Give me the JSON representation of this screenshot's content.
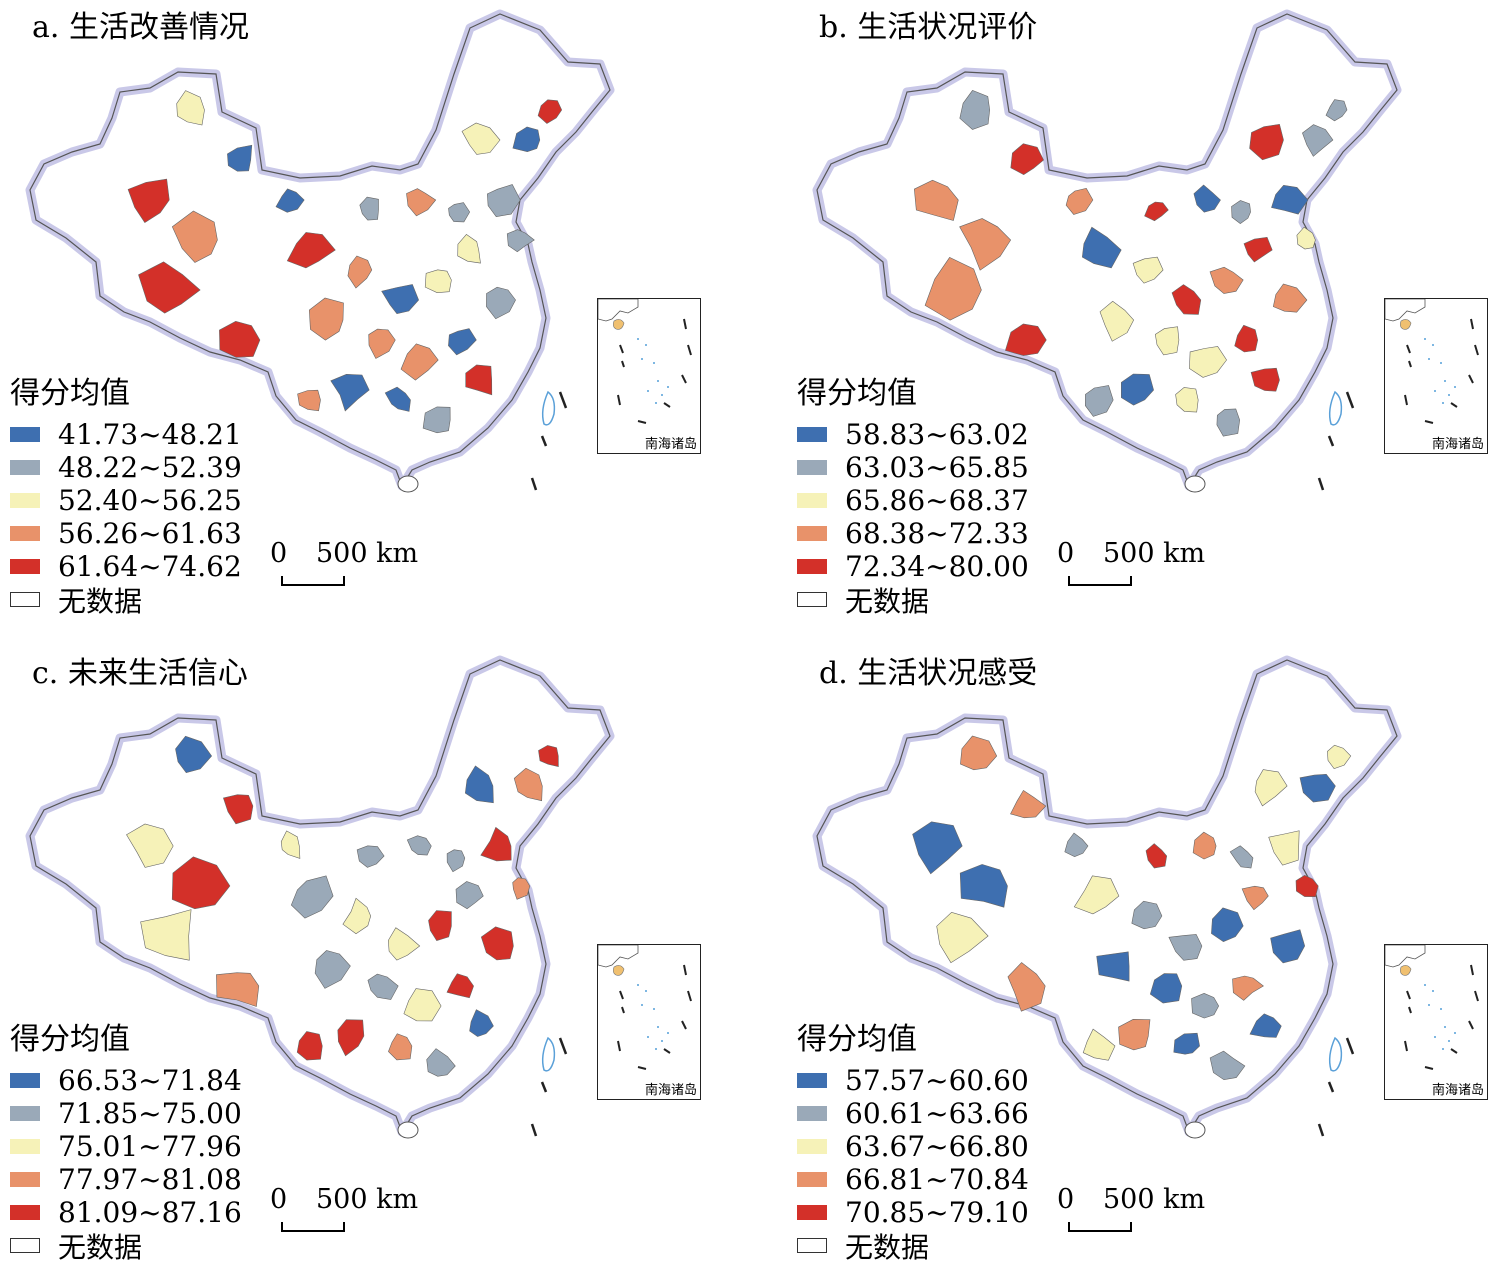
{
  "panels": [
    {
      "title": "a. 生活改善情况",
      "legend_title": "得分均值",
      "classes": [
        "41.73~48.21",
        "48.22~52.39",
        "52.40~56.25",
        "56.26~61.63",
        "61.64~74.62"
      ],
      "no_data_label": "无数据"
    },
    {
      "title": "b. 生活状况评价",
      "legend_title": "得分均值",
      "classes": [
        "58.83~63.02",
        "63.03~65.85",
        "65.86~68.37",
        "68.38~72.33",
        "72.34~80.00"
      ],
      "no_data_label": "无数据"
    },
    {
      "title": "c. 未来生活信心",
      "legend_title": "得分均值",
      "classes": [
        "66.53~71.84",
        "71.85~75.00",
        "75.01~77.96",
        "77.97~81.08",
        "81.09~87.16"
      ],
      "no_data_label": "无数据"
    },
    {
      "title": "d. 生活状况感受",
      "legend_title": "得分均值",
      "classes": [
        "57.57~60.60",
        "60.61~63.66",
        "63.67~66.80",
        "66.81~70.84",
        "70.85~79.10"
      ],
      "no_data_label": "无数据"
    }
  ],
  "scale_zero": "0",
  "scale_distance": "500 km",
  "inset_label": "南海诸岛",
  "class_colors": [
    "#3e6fb0",
    "#9aa9b8",
    "#f6f2b8",
    "#e8926a",
    "#d33029"
  ],
  "no_data_color": "#ffffff",
  "border_glow_color": "#c9c8e8"
}
